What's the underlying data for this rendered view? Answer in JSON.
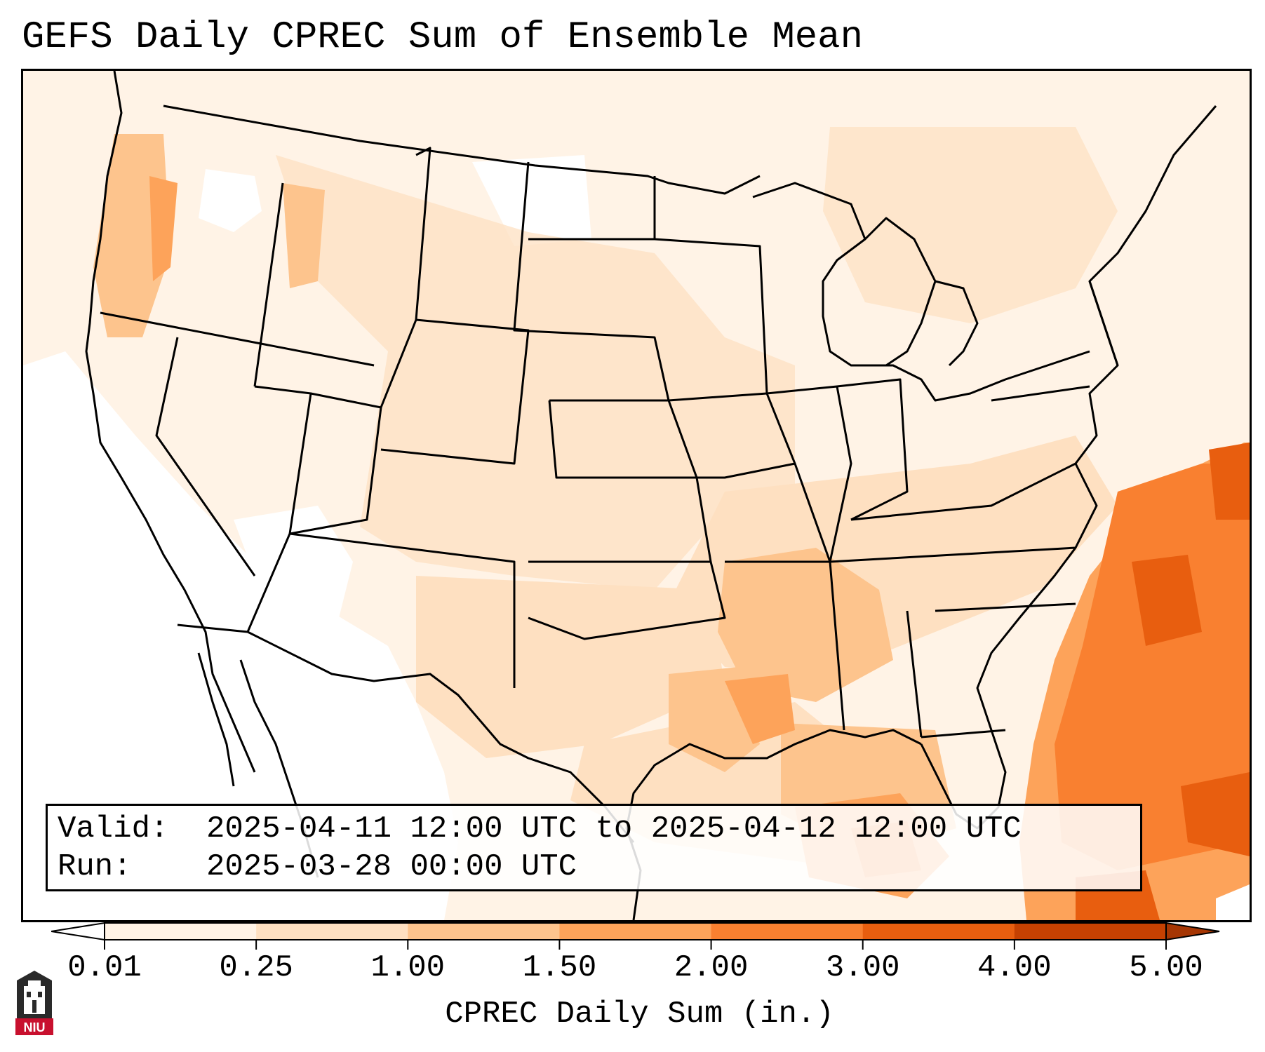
{
  "header": {
    "title": "GEFS Daily CPREC Sum of Ensemble Mean"
  },
  "info": {
    "valid_label": "Valid:",
    "valid_value": "2025-04-11 12:00 UTC to 2025-04-12 12:00 UTC",
    "run_label": "Run:",
    "run_value": "2025-03-28 00:00 UTC"
  },
  "colorbar": {
    "label": "CPREC Daily Sum (in.)",
    "ticks": [
      "0.01",
      "0.25",
      "1.00",
      "1.50",
      "2.00",
      "3.00",
      "4.00",
      "5.00"
    ],
    "bin_colors": [
      "#fff3e6",
      "#fee0c1",
      "#fdc48d",
      "#fda35a",
      "#f98030",
      "#e85e0f",
      "#c54102"
    ],
    "under_color": "#ffffff",
    "over_color": "#a63603"
  },
  "logo": {
    "text": "NIU",
    "icon": "niu-tower-logo-icon"
  },
  "map": {
    "region": "Continental United States",
    "field": "CPREC daily sum, ensemble mean"
  }
}
